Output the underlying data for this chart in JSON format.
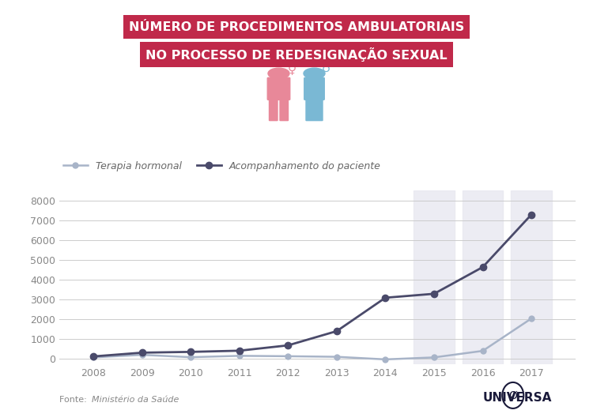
{
  "years": [
    2008,
    2009,
    2010,
    2011,
    2012,
    2013,
    2014,
    2015,
    2016,
    2017
  ],
  "terapia_hormonal": [
    50,
    180,
    60,
    130,
    110,
    80,
    -50,
    50,
    380,
    2020
  ],
  "acompanhamento": [
    100,
    290,
    330,
    390,
    660,
    1380,
    3070,
    3270,
    4620,
    7280
  ],
  "line1_color": "#a8b4c8",
  "line2_color": "#4a4a6a",
  "highlight_years": [
    2015,
    2016,
    2017
  ],
  "title_line1": "NÚMERO DE PROCEDIMENTOS AMBULATORIAIS",
  "title_line2": "NO PROCESSO DE REDESIGNAÇÃO SEXUAL",
  "title_bg_color": "#c0294a",
  "title_text_color": "#ffffff",
  "legend_label1": "Terapia hormonal",
  "legend_label2": "Acompanhamento do paciente",
  "fonte_text": "Fonte:   Ministério da Saúde",
  "bg_color": "#ffffff",
  "yticks": [
    0,
    1000,
    2000,
    3000,
    4000,
    5000,
    6000,
    7000,
    8000
  ],
  "ylim": [
    -300,
    8500
  ],
  "grid_color": "#cccccc",
  "tick_color": "#888888",
  "highlight_color": "#e8e8f0",
  "female_color": "#e88899",
  "male_color": "#7ab8d4"
}
